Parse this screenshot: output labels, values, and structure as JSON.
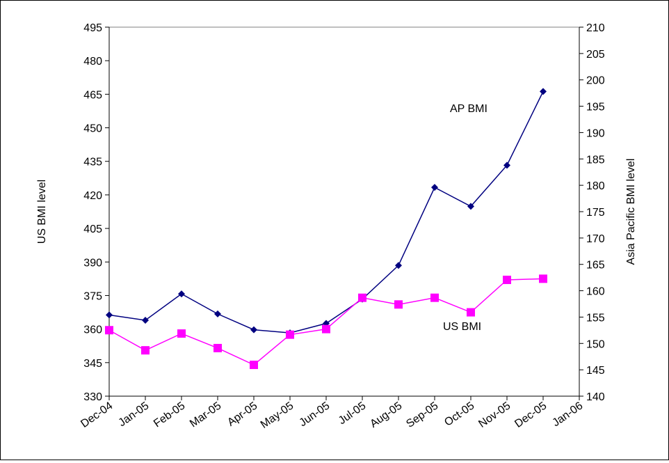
{
  "chart_data": {
    "type": "line",
    "title": "",
    "x_tick_labels": [
      "Dec-04",
      "Jan-05",
      "Feb-05",
      "Mar-05",
      "Apr-05",
      "May-05",
      "Jun-05",
      "Jul-05",
      "Aug-05",
      "Sep-05",
      "Oct-05",
      "Nov-05",
      "Dec-05",
      "Jan-06"
    ],
    "y_left": {
      "label": "US BMI level",
      "ylim": [
        330,
        495
      ],
      "ticks": [
        330,
        345,
        360,
        375,
        390,
        405,
        420,
        435,
        450,
        465,
        480,
        495
      ]
    },
    "y_right": {
      "label": "Asia Pacific BMI level",
      "ylim": [
        140,
        210
      ],
      "ticks": [
        140,
        145,
        150,
        155,
        160,
        165,
        170,
        175,
        180,
        185,
        190,
        195,
        200,
        205,
        210
      ]
    },
    "grid": false,
    "series": [
      {
        "name": "AP BMI",
        "axis": "right",
        "color": "#000080",
        "marker": "diamond",
        "x": [
          "Dec-04",
          "Jan-05",
          "Feb-05",
          "Mar-05",
          "Apr-05",
          "May-05",
          "Jun-05",
          "Jul-05",
          "Aug-05",
          "Sep-05",
          "Oct-05",
          "Nov-05",
          "Dec-05"
        ],
        "values": [
          155.4,
          154.4,
          159.4,
          155.6,
          152.6,
          152.0,
          153.8,
          158.4,
          164.8,
          179.6,
          176.0,
          183.8,
          197.8
        ]
      },
      {
        "name": "US BMI",
        "axis": "left",
        "color": "#FF00FF",
        "marker": "square",
        "x": [
          "Dec-04",
          "Jan-05",
          "Feb-05",
          "Mar-05",
          "Apr-05",
          "May-05",
          "Jun-05",
          "Jul-05",
          "Aug-05",
          "Sep-05",
          "Oct-05",
          "Nov-05",
          "Dec-05"
        ],
        "values": [
          359.5,
          350.5,
          358.0,
          351.5,
          344.0,
          357.5,
          360.0,
          374.0,
          371.0,
          374.0,
          367.5,
          382.0,
          382.5
        ]
      }
    ],
    "annotations": [
      "AP BMI",
      "US BMI"
    ]
  }
}
